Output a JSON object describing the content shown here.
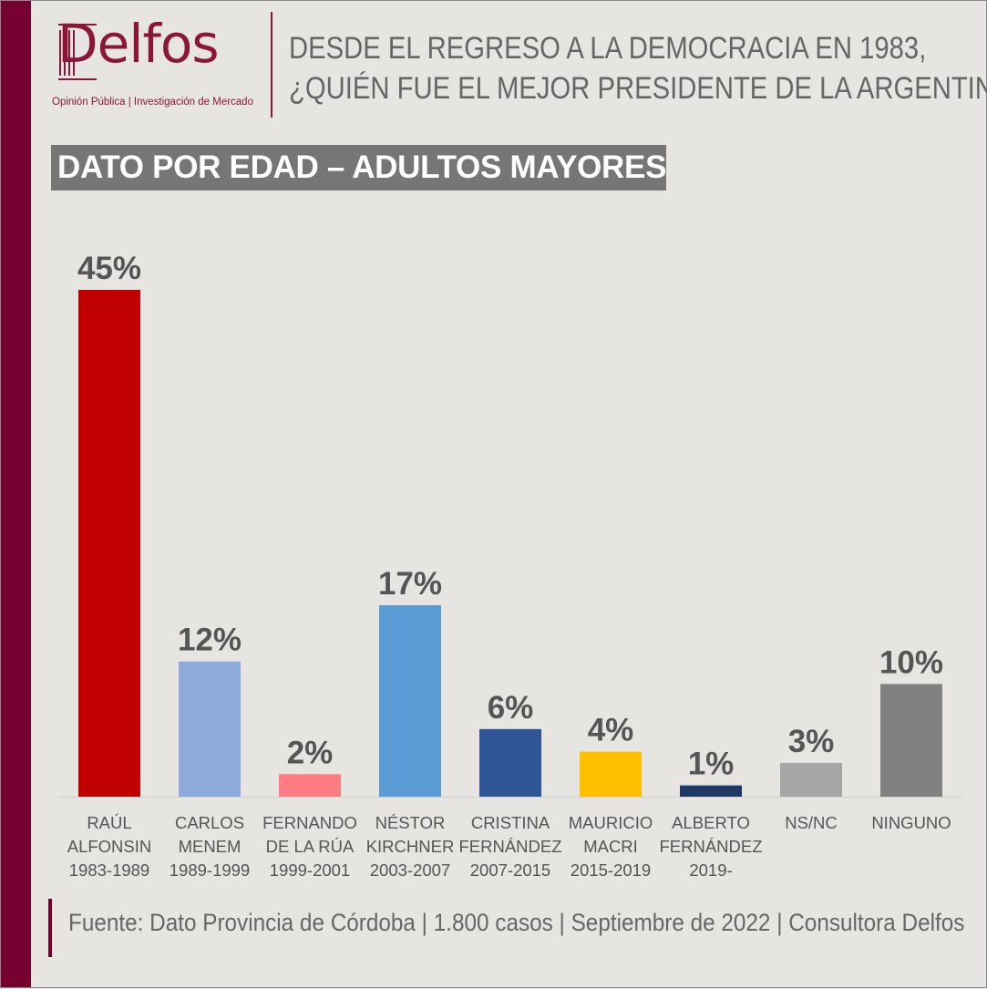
{
  "logo": {
    "word": "Delfos",
    "tagline": "Opinión Pública | Investigación de Mercado"
  },
  "header": {
    "title_line1": "DESDE EL REGRESO A LA DEMOCRACIA EN 1983,",
    "title_line2": "¿QUIÉN FUE EL MEJOR PRESIDENTE DE LA ARGENTINA?",
    "subtitle": "DATO POR EDAD – ADULTOS MAYORES"
  },
  "footer": {
    "source": "Fuente: Dato Provincia de Córdoba | 1.800 casos | Septiembre de 2022 | Consultora Delfos"
  },
  "colors": {
    "brand": "#760030",
    "background": "#e6e5e2"
  },
  "chart_data": {
    "type": "bar",
    "categories": [
      [
        "RAÚL",
        "ALFONSIN",
        "1983-1989"
      ],
      [
        "CARLOS",
        "MENEM",
        "1989-1999"
      ],
      [
        "FERNANDO",
        "DE LA RÚA",
        "1999-2001"
      ],
      [
        "NÉSTOR",
        "KIRCHNER",
        "2003-2007"
      ],
      [
        "CRISTINA",
        "FERNÁNDEZ",
        "2007-2015"
      ],
      [
        "MAURICIO",
        "MACRI",
        "2015-2019"
      ],
      [
        "ALBERTO",
        "FERNÁNDEZ",
        "2019-"
      ],
      [
        "NS/NC"
      ],
      [
        "NINGUNO"
      ]
    ],
    "values": [
      45,
      12,
      2,
      17,
      6,
      4,
      1,
      3,
      10
    ],
    "value_labels": [
      "45%",
      "12%",
      "2%",
      "17%",
      "6%",
      "4%",
      "1%",
      "3%",
      "10%"
    ],
    "colors": [
      "#c00000",
      "#8eaadb",
      "#ff7c80",
      "#5b9bd5",
      "#2f5597",
      "#ffc000",
      "#1f3864",
      "#a6a6a6",
      "#808080"
    ],
    "unit": "%",
    "ylim": [
      0,
      45
    ],
    "grid": false,
    "legend": "none"
  }
}
